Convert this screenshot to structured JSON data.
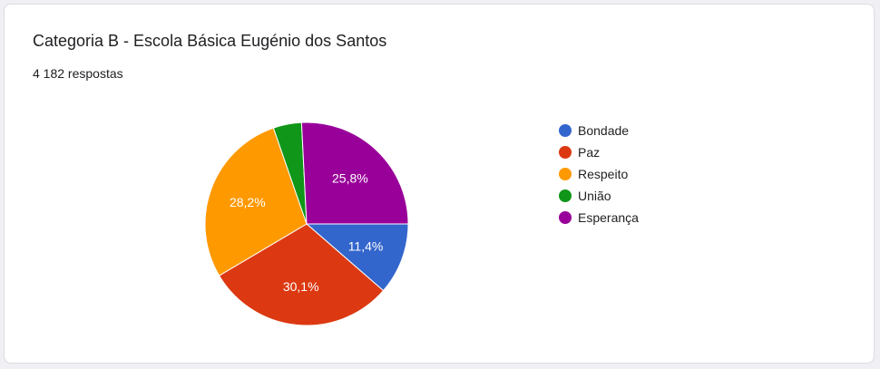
{
  "header": {
    "title": "Categoria B - Escola Básica Eugénio dos Santos",
    "responses": "4 182 respostas"
  },
  "chart_data": {
    "type": "pie",
    "title": "Categoria B - Escola Básica Eugénio dos Santos",
    "legend_position": "right",
    "slices": [
      {
        "name": "Bondade",
        "value": 11.4,
        "label": "11,4%",
        "color": "#3366cc"
      },
      {
        "name": "Paz",
        "value": 30.1,
        "label": "30,1%",
        "color": "#dc3912"
      },
      {
        "name": "Respeito",
        "value": 28.2,
        "label": "28,2%",
        "color": "#ff9900"
      },
      {
        "name": "União",
        "value": 4.5,
        "label": "",
        "color": "#109618"
      },
      {
        "name": "Esperança",
        "value": 25.8,
        "label": "25,8%",
        "color": "#990099"
      }
    ]
  }
}
